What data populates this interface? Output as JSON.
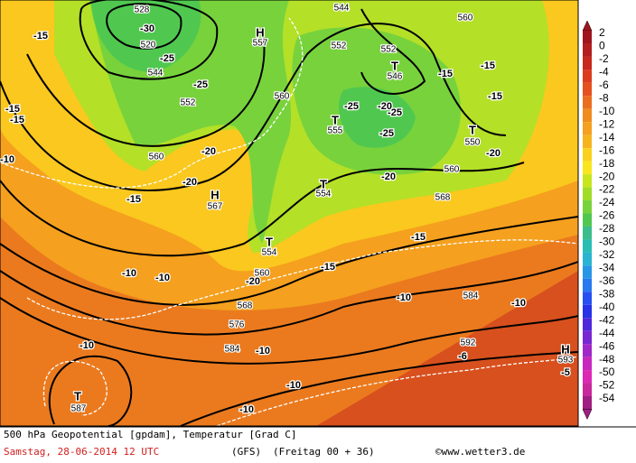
{
  "map": {
    "labels": [
      "528",
      "-30",
      "520",
      "544",
      "-25",
      "-15",
      "552",
      "-25",
      "H",
      "557",
      "544",
      "552",
      "552",
      "T",
      "546",
      "-15",
      "-15",
      "560",
      "-15",
      "560",
      "-25",
      "-20",
      "-25",
      "T",
      "555",
      "-25",
      "T",
      "550",
      "-20",
      "560",
      "-20",
      "-20",
      "H",
      "567",
      "-15",
      "T",
      "554",
      "560",
      "-20",
      "568",
      "-15",
      "T",
      "554",
      "-15",
      "560",
      "-20",
      "-10",
      "-10",
      "568",
      "-10",
      "584",
      "-10",
      "576",
      "584",
      "-10",
      "-10",
      "592",
      "-6",
      "H",
      "593",
      "-5",
      "-10",
      "T",
      "587",
      "-10",
      "-15",
      "-15",
      "-10"
    ]
  },
  "legend": {
    "labels": [
      2,
      0,
      -2,
      -4,
      -6,
      -8,
      -10,
      -12,
      -14,
      -16,
      -18,
      -20,
      -22,
      -24,
      -26,
      -28,
      -30,
      -32,
      -34,
      -36,
      -38,
      -40,
      -42,
      -44,
      -46,
      -48,
      -50,
      -52,
      -54
    ],
    "colors": [
      "#a0141e",
      "#b41e1e",
      "#c8281e",
      "#dc3c1e",
      "#e6501e",
      "#eb6e1e",
      "#f08c1e",
      "#f5a01e",
      "#f5b41e",
      "#fad21e",
      "#fae61e",
      "#c8e61e",
      "#a0dc28",
      "#78d23c",
      "#50c850",
      "#3cbe8c",
      "#28beb4",
      "#28b4d2",
      "#2896e6",
      "#2878f0",
      "#2850f0",
      "#2832e6",
      "#5028dc",
      "#7828d2",
      "#a028c8",
      "#c828be",
      "#dc28b4",
      "#c8289b",
      "#a01e82"
    ]
  },
  "footer": {
    "title": "500 hPa Geopotential [gpdam], Temperatur [Grad C]",
    "date": "Samstag, 28-06-2014  12 UTC",
    "model": "(GFS)",
    "run": "(Freitag 00 + 36)",
    "source": "©www.wetter3.de"
  }
}
